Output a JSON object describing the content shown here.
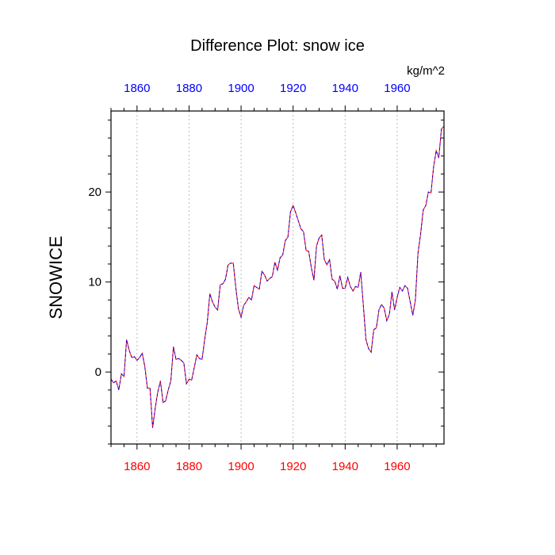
{
  "chart_data": {
    "type": "line",
    "title": "Difference Plot: snow ice",
    "units": "kg/m^2",
    "ylabel": "SNOWICE",
    "xlabel": "",
    "xlim": [
      1850,
      1978
    ],
    "ylim": [
      -8,
      29
    ],
    "grid": "vertical dotted lines at major x ticks",
    "x_ticks_bottom": [
      1860,
      1880,
      1900,
      1920,
      1940,
      1960
    ],
    "x_ticks_top": [
      1860,
      1880,
      1900,
      1920,
      1940,
      1960
    ],
    "y_ticks": [
      0,
      10,
      20
    ],
    "colors": {
      "bottom_axis_labels": "#ff0000",
      "top_axis_labels": "#0000ff",
      "series_a": "#ff0000",
      "series_b": "#0000ff"
    },
    "x": [
      1850,
      1851,
      1852,
      1853,
      1854,
      1855,
      1856,
      1857,
      1858,
      1859,
      1860,
      1861,
      1862,
      1863,
      1864,
      1865,
      1866,
      1867,
      1868,
      1869,
      1870,
      1871,
      1872,
      1873,
      1874,
      1875,
      1876,
      1877,
      1878,
      1879,
      1880,
      1881,
      1882,
      1883,
      1884,
      1885,
      1886,
      1887,
      1888,
      1889,
      1890,
      1891,
      1892,
      1893,
      1894,
      1895,
      1896,
      1897,
      1898,
      1899,
      1900,
      1901,
      1902,
      1903,
      1904,
      1905,
      1906,
      1907,
      1908,
      1909,
      1910,
      1911,
      1912,
      1913,
      1914,
      1915,
      1916,
      1917,
      1918,
      1919,
      1920,
      1921,
      1922,
      1923,
      1924,
      1925,
      1926,
      1927,
      1928,
      1929,
      1930,
      1931,
      1932,
      1933,
      1934,
      1935,
      1936,
      1937,
      1938,
      1939,
      1940,
      1941,
      1942,
      1943,
      1944,
      1945,
      1946,
      1947,
      1948,
      1949,
      1950,
      1951,
      1952,
      1953,
      1954,
      1955,
      1956,
      1957,
      1958,
      1959,
      1960,
      1961,
      1962,
      1963,
      1964,
      1965,
      1966,
      1967,
      1968,
      1969,
      1970,
      1971,
      1972,
      1973,
      1974,
      1975,
      1976,
      1977,
      1978
    ],
    "series": [
      {
        "values": [
          -0.8,
          -1.2,
          -1.0,
          -2.0,
          -0.2,
          -0.5,
          3.6,
          2.4,
          1.6,
          1.7,
          1.3,
          1.6,
          2.1,
          0.6,
          -1.8,
          -1.8,
          -6.2,
          -4.0,
          -2.2,
          -1.0,
          -3.4,
          -3.2,
          -2.0,
          -1.0,
          2.8,
          1.4,
          1.5,
          1.3,
          1.0,
          -1.3,
          -0.8,
          -0.9,
          0.5,
          1.9,
          1.5,
          1.4,
          3.6,
          5.5,
          8.7,
          7.8,
          7.2,
          6.9,
          9.7,
          9.8,
          10.3,
          11.9,
          12.1,
          12.1,
          9.3,
          7.0,
          6.1,
          7.4,
          7.8,
          8.3,
          8.0,
          9.6,
          9.4,
          9.2,
          11.2,
          10.8,
          10.1,
          10.4,
          10.6,
          12.2,
          11.3,
          12.7,
          13.0,
          14.6,
          15.0,
          17.8,
          18.5,
          17.7,
          16.8,
          15.9,
          15.6,
          13.5,
          13.4,
          11.6,
          10.2,
          14.0,
          14.9,
          15.2,
          12.5,
          11.9,
          12.5,
          10.3,
          10.1,
          9.2,
          10.7,
          9.3,
          9.3,
          10.5,
          9.5,
          9.0,
          9.5,
          9.4,
          11.1,
          7.4,
          3.6,
          2.6,
          2.2,
          4.7,
          4.9,
          6.9,
          7.5,
          7.1,
          5.7,
          6.4,
          8.9,
          6.9,
          8.3,
          9.4,
          9.0,
          9.6,
          9.3,
          7.8,
          6.3,
          8.0,
          13.2,
          15.3,
          18.0,
          18.5,
          20.0,
          19.9,
          22.8,
          24.6,
          23.8,
          27.0,
          27.3
        ]
      },
      {
        "values": [
          -0.8,
          -1.2,
          -1.0,
          -2.0,
          -0.2,
          -0.5,
          3.6,
          2.4,
          1.6,
          1.7,
          1.3,
          1.6,
          2.1,
          0.6,
          -1.8,
          -1.8,
          -6.2,
          -4.0,
          -2.2,
          -1.0,
          -3.4,
          -3.2,
          -2.0,
          -1.0,
          2.8,
          1.4,
          1.5,
          1.3,
          1.0,
          -1.3,
          -0.8,
          -0.9,
          0.5,
          1.9,
          1.5,
          1.4,
          3.6,
          5.5,
          8.7,
          7.8,
          7.2,
          6.9,
          9.7,
          9.8,
          10.3,
          11.9,
          12.1,
          12.1,
          9.3,
          7.0,
          6.1,
          7.4,
          7.8,
          8.3,
          8.0,
          9.6,
          9.4,
          9.2,
          11.2,
          10.8,
          10.1,
          10.4,
          10.6,
          12.2,
          11.3,
          12.7,
          13.0,
          14.6,
          15.0,
          17.8,
          18.5,
          17.7,
          16.8,
          15.9,
          15.6,
          13.5,
          13.4,
          11.6,
          10.2,
          14.0,
          14.9,
          15.2,
          12.5,
          11.9,
          12.5,
          10.3,
          10.1,
          9.2,
          10.7,
          9.3,
          9.3,
          10.5,
          9.5,
          9.0,
          9.5,
          9.4,
          11.1,
          7.4,
          3.6,
          2.6,
          2.2,
          4.7,
          4.9,
          6.9,
          7.5,
          7.1,
          5.7,
          6.4,
          8.9,
          6.9,
          8.3,
          9.4,
          9.0,
          9.6,
          9.3,
          7.8,
          6.3,
          8.0,
          13.2,
          15.3,
          18.0,
          18.5,
          20.0,
          19.9,
          22.8,
          24.6,
          23.8,
          27.0,
          27.3
        ]
      }
    ]
  }
}
